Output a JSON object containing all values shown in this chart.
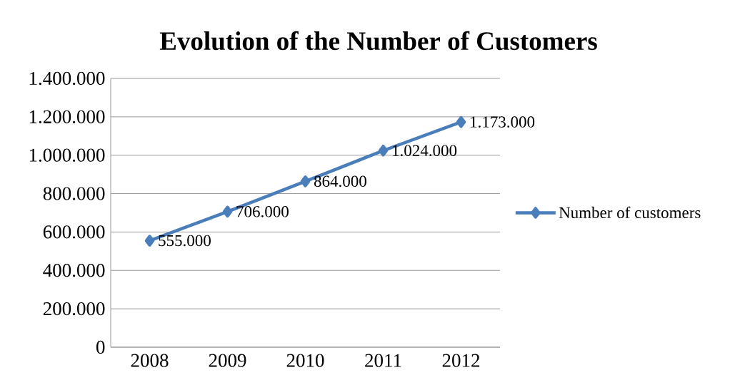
{
  "chart_data": {
    "type": "line",
    "title": "Evolution of the Number of Customers",
    "categories": [
      "2008",
      "2009",
      "2010",
      "2011",
      "2012"
    ],
    "series": [
      {
        "name": "Number of customers",
        "color": "#4a7ebb",
        "values": [
          555000,
          706000,
          864000,
          1024000,
          1173000
        ],
        "value_labels": [
          "555.000",
          "706.000",
          "864.000",
          "1.024.000",
          "1.173.000"
        ]
      }
    ],
    "ylim": [
      0,
      1400000
    ],
    "yticks": [
      {
        "value": 0,
        "label": "0"
      },
      {
        "value": 200000,
        "label": "200.000"
      },
      {
        "value": 400000,
        "label": "400.000"
      },
      {
        "value": 600000,
        "label": "600.000"
      },
      {
        "value": 800000,
        "label": "800.000"
      },
      {
        "value": 1000000,
        "label": "1.000.000"
      },
      {
        "value": 1200000,
        "label": "1.200.000"
      },
      {
        "value": 1400000,
        "label": "1.400.000"
      }
    ],
    "grid": "y",
    "legend": "right",
    "marker": "diamond",
    "line_style": "solid"
  }
}
